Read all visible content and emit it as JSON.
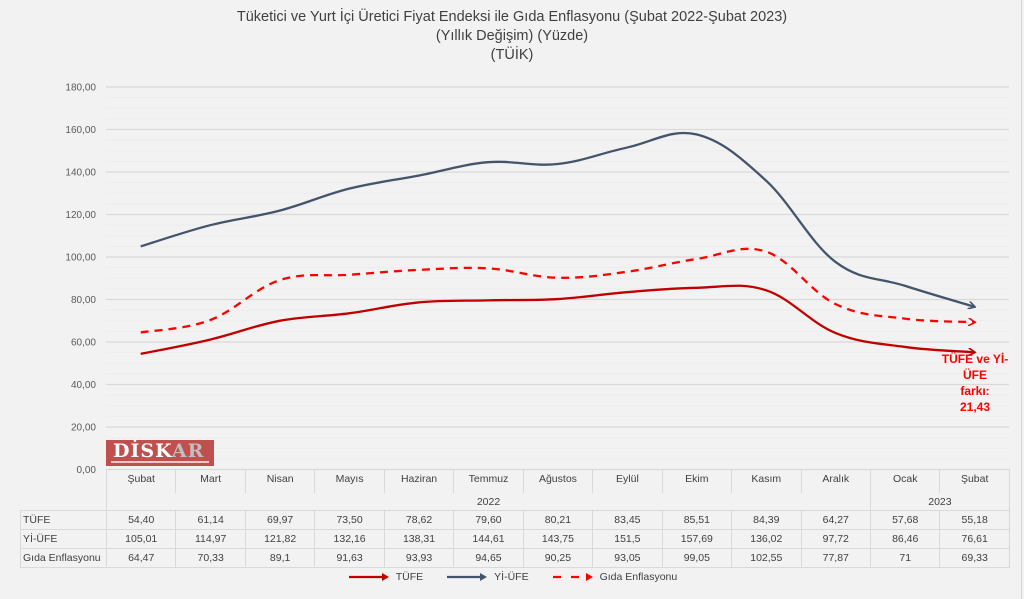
{
  "chart_data": {
    "type": "line",
    "title": "Tüketici ve Yurt İçi Üretici Fiyat Endeksi ile Gıda Enflasyonu (Şubat 2022-Şubat 2023)",
    "subtitle": "(Yıllık Değişim) (Yüzde)",
    "source_line": "(TÜİK)",
    "xlabel": "",
    "ylabel": "",
    "ylim": [
      0,
      180
    ],
    "yticks": [
      "0,00",
      "20,00",
      "40,00",
      "60,00",
      "80,00",
      "100,00",
      "120,00",
      "140,00",
      "160,00",
      "180,00"
    ],
    "ytick_values": [
      0,
      20,
      40,
      60,
      80,
      100,
      120,
      140,
      160,
      180
    ],
    "grid": true,
    "categories": [
      "Şubat",
      "Mart",
      "Nisan",
      "Mayıs",
      "Haziran",
      "Temmuz",
      "Ağustos",
      "Eylül",
      "Ekim",
      "Kasım",
      "Aralık",
      "Ocak",
      "Şubat"
    ],
    "year_groups": [
      {
        "label": "2022",
        "span": 11
      },
      {
        "label": "2023",
        "span": 2
      }
    ],
    "series": [
      {
        "name": "TÜFE",
        "color": "#c00000",
        "dashed": false,
        "values": [
          54.4,
          61.14,
          69.97,
          73.5,
          78.62,
          79.6,
          80.21,
          83.45,
          85.51,
          84.39,
          64.27,
          57.68,
          55.18
        ],
        "labels": [
          "54,40",
          "61,14",
          "69,97",
          "73,50",
          "78,62",
          "79,60",
          "80,21",
          "83,45",
          "85,51",
          "84,39",
          "64,27",
          "57,68",
          "55,18"
        ]
      },
      {
        "name": "Yİ-ÜFE",
        "color": "#44546a",
        "dashed": false,
        "values": [
          105.01,
          114.97,
          121.82,
          132.16,
          138.31,
          144.61,
          143.75,
          151.5,
          157.69,
          136.02,
          97.72,
          86.46,
          76.61
        ],
        "labels": [
          "105,01",
          "114,97",
          "121,82",
          "132,16",
          "138,31",
          "144,61",
          "143,75",
          "151,5",
          "157,69",
          "136,02",
          "97,72",
          "86,46",
          "76,61"
        ]
      },
      {
        "name": "Gıda Enflasyonu",
        "color": "#ff0000",
        "dashed": true,
        "values": [
          64.47,
          70.33,
          89.1,
          91.63,
          93.93,
          94.65,
          90.25,
          93.05,
          99.05,
          102.55,
          77.87,
          71,
          69.33
        ],
        "labels": [
          "64,47",
          "70,33",
          "89,1",
          "91,63",
          "93,93",
          "94,65",
          "90,25",
          "93,05",
          "99,05",
          "102,55",
          "77,87",
          "71",
          "69,33"
        ]
      }
    ],
    "legend_position": "bottom",
    "annotation": {
      "lines": [
        "TÜFE ve Yİ-ÜFE",
        "farkı:",
        "21,43"
      ],
      "color": "#ff0000",
      "position": "bottom-right"
    }
  },
  "logo": {
    "main": "DİSK",
    "accent": "AR"
  }
}
